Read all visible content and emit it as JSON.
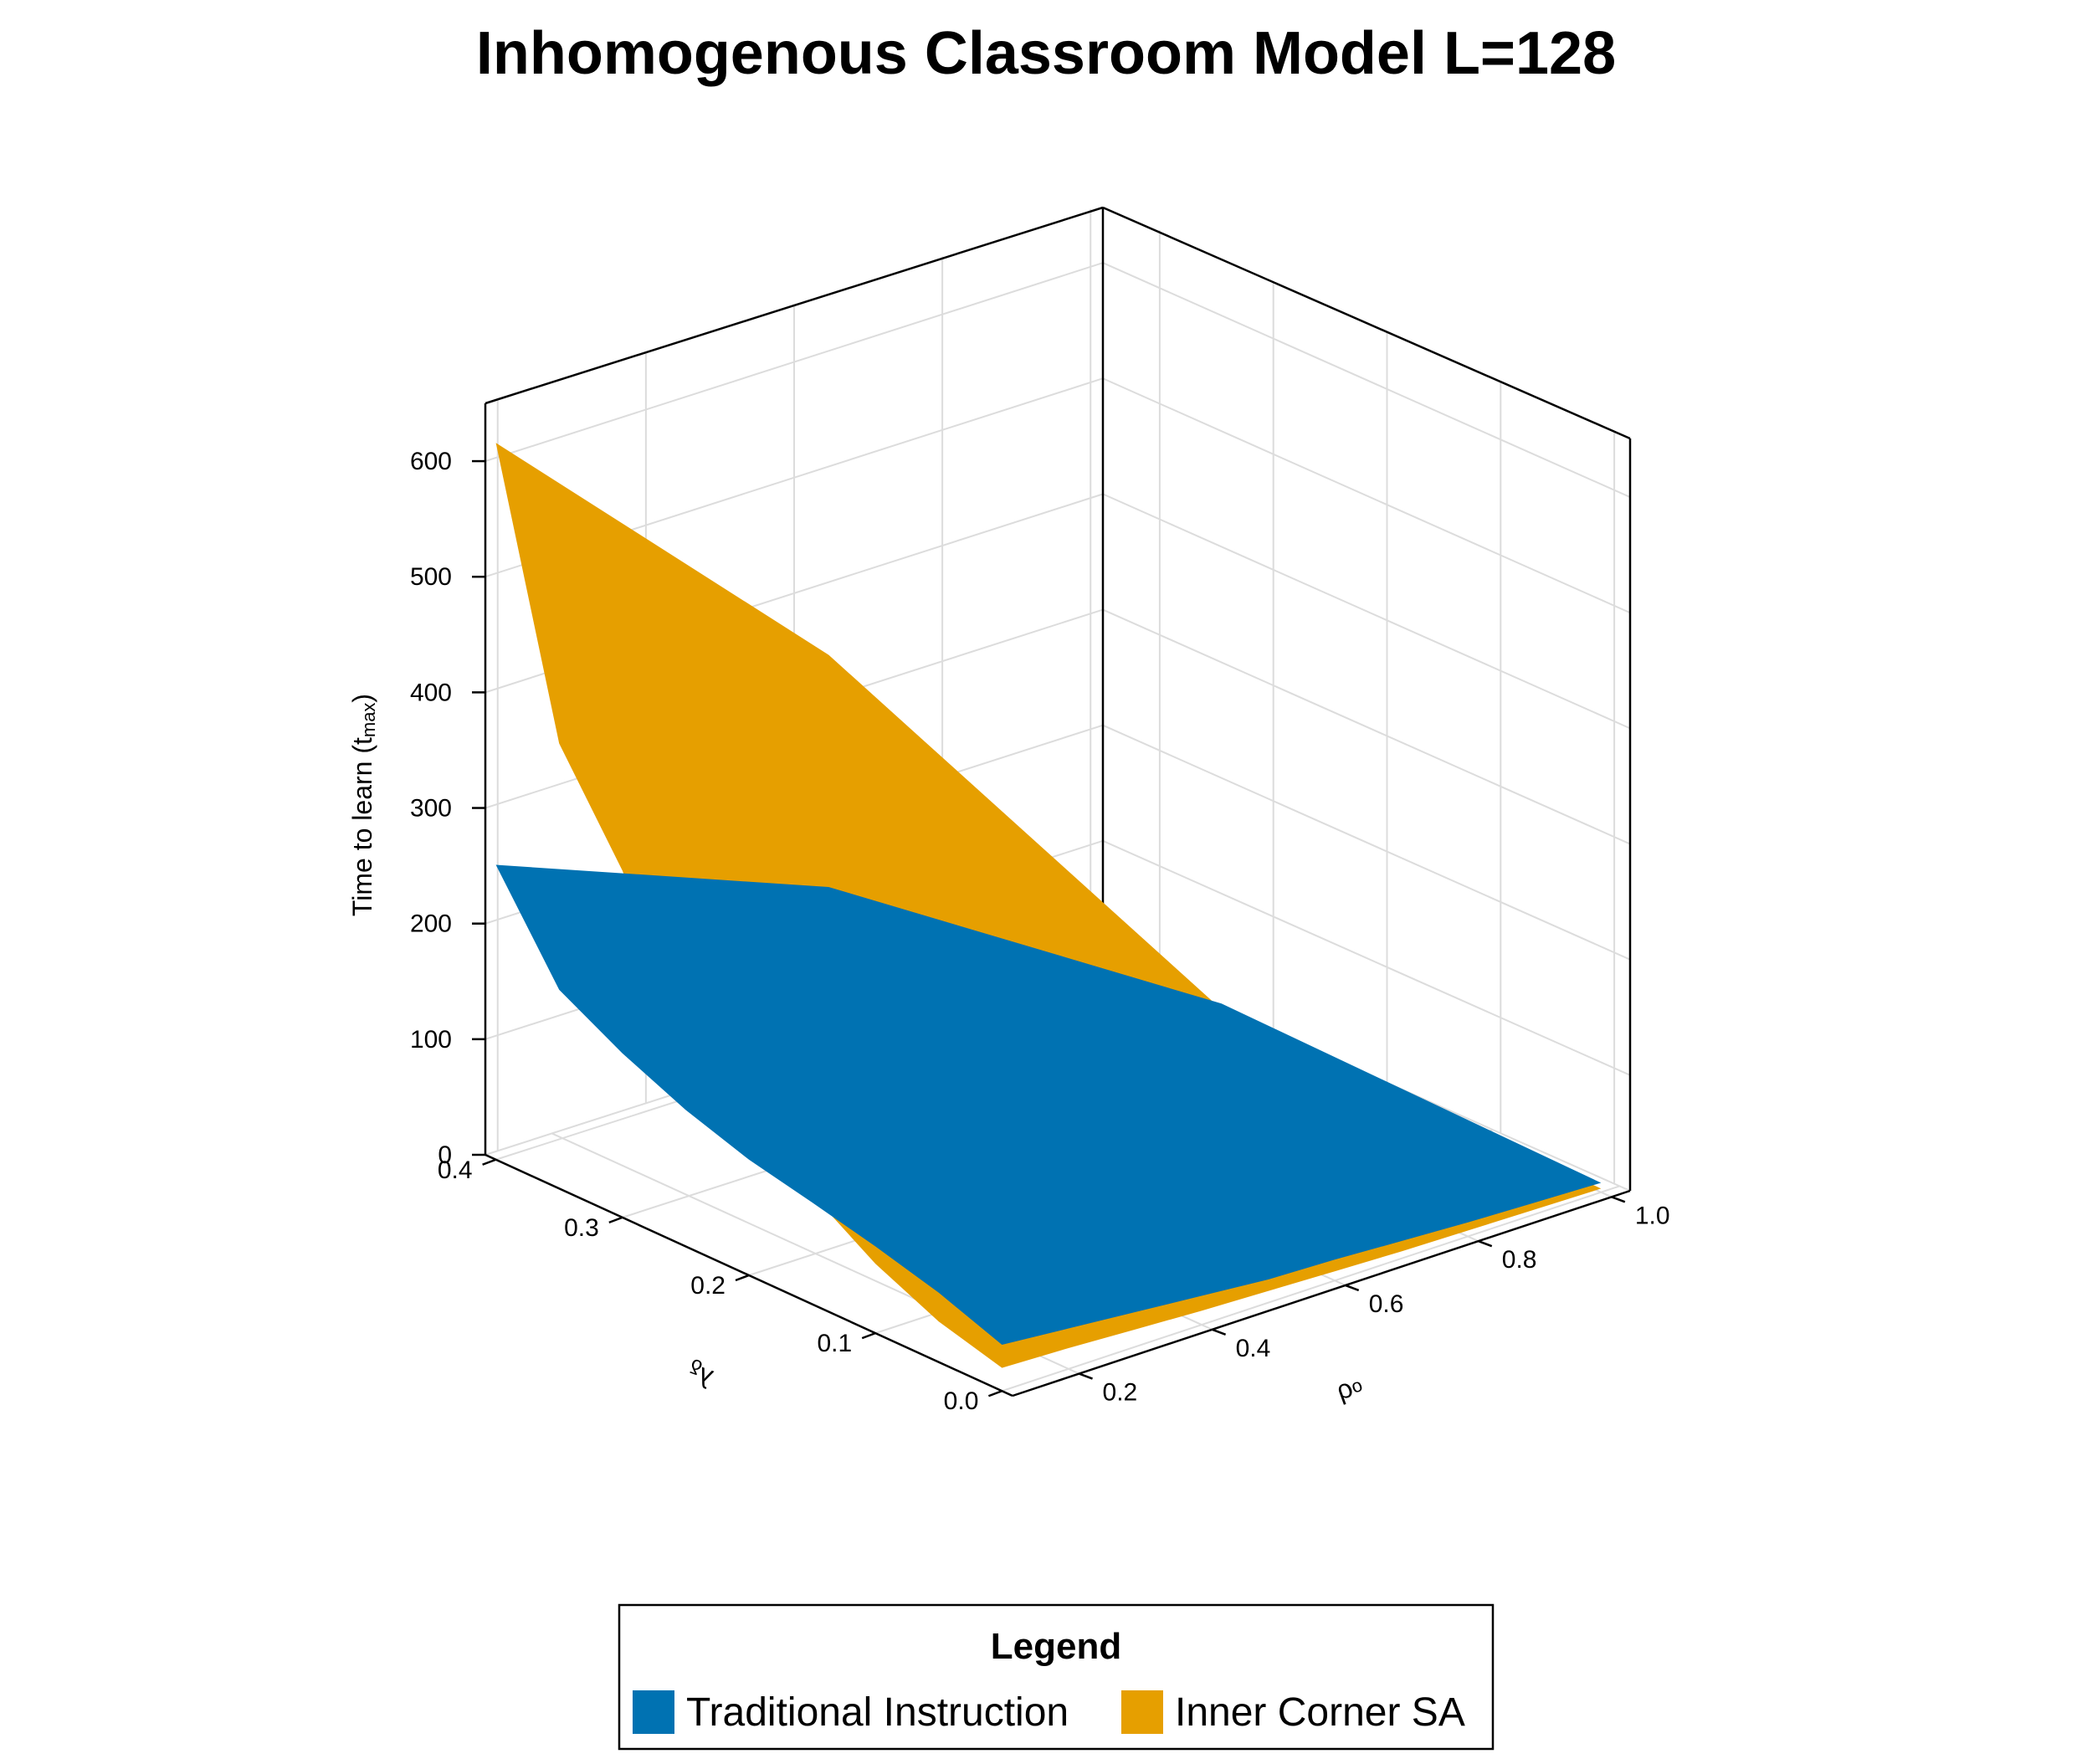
{
  "chart_data": {
    "type": "surface3d",
    "title": "Inhomogenous Classroom Model L=128",
    "zlabel": "Time to learn (t",
    "zlabel_sub": "max",
    "zlabel_close": ")",
    "xlabel": "ρ₀",
    "ylabel": "λ_δ",
    "zlim": [
      0,
      650
    ],
    "z_ticks": [
      "0",
      "100",
      "200",
      "300",
      "400",
      "500",
      "600"
    ],
    "y_ticks": [
      "0.0",
      "0.1",
      "0.2",
      "0.3",
      "0.4"
    ],
    "x_ticks": [
      "0.2",
      "0.4",
      "0.6",
      "0.8",
      "1.0"
    ],
    "grid": true,
    "legend": {
      "title": "Legend",
      "placement": "bottom-center",
      "entries": [
        {
          "label": "Traditional Instruction",
          "color": "#0072b2"
        },
        {
          "label": "Inner Corner SA",
          "color": "#e69f00"
        }
      ]
    },
    "series": [
      {
        "name": "Traditional Instruction",
        "color": "#0072b2",
        "lambda_edge": {
          "lambda": [
            0.4,
            0.35,
            0.3,
            0.25,
            0.2,
            0.15,
            0.1,
            0.05,
            0.0
          ],
          "time": [
            255,
            172,
            142,
            118,
            100,
            88,
            75,
            60,
            40
          ]
        },
        "rho_edge": {
          "rho": [
            0.1,
            0.2,
            0.3,
            0.4,
            0.5,
            0.6,
            0.7,
            0.8,
            0.9,
            1.0
          ],
          "time": [
            40,
            35,
            30,
            25,
            20,
            18,
            15,
            12,
            10,
            8
          ]
        }
      },
      {
        "name": "Inner Corner SA",
        "color": "#e69f00",
        "lambda_edge": {
          "lambda": [
            0.4,
            0.35,
            0.3,
            0.25,
            0.2,
            0.15,
            0.1,
            0.05,
            0.0
          ],
          "time": [
            620,
            385,
            300,
            190,
            140,
            95,
            60,
            35,
            20
          ]
        },
        "rho_edge": {
          "rho": [
            0.1,
            0.2,
            0.3,
            0.4,
            0.5,
            0.6,
            0.7,
            0.8,
            0.9,
            1.0
          ],
          "time": [
            20,
            18,
            15,
            12,
            10,
            8,
            6,
            5,
            4,
            3
          ]
        }
      }
    ]
  }
}
